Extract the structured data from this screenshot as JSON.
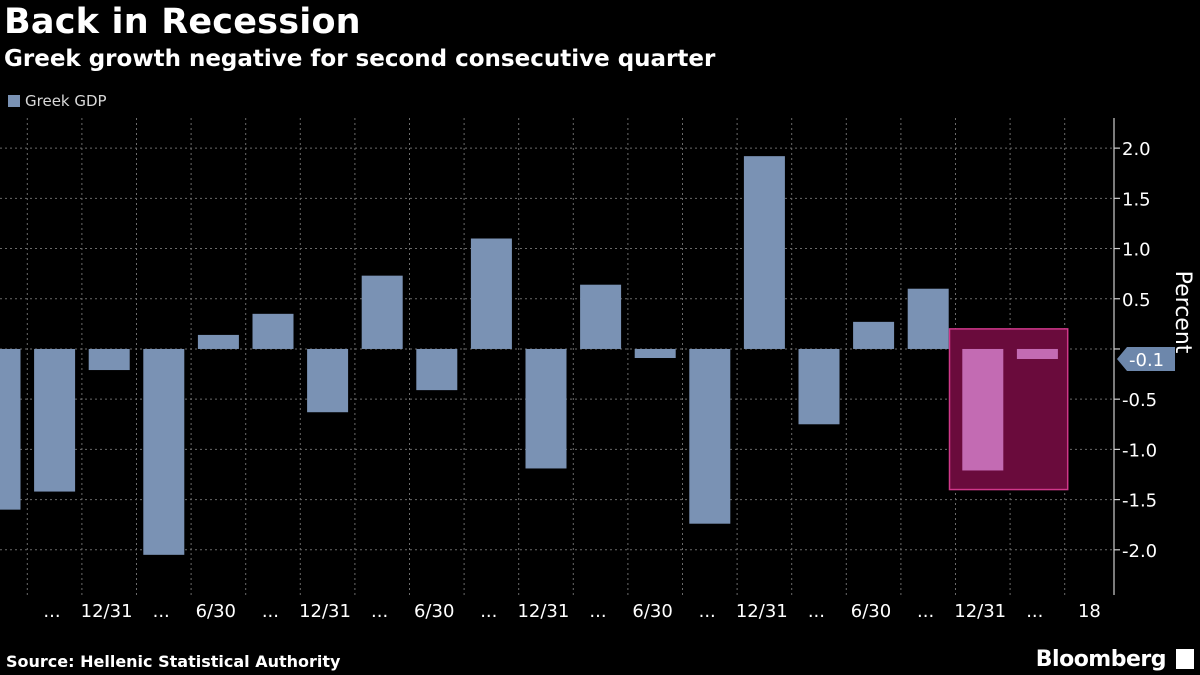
{
  "header": {
    "title": "Back in Recession",
    "subtitle": "Greek growth negative for second consecutive quarter"
  },
  "legend": {
    "label": "Greek GDP",
    "color": "#7a92b4"
  },
  "footer": {
    "source": "Source: Hellenic Statistical Authority",
    "brand": "Bloomberg"
  },
  "colors": {
    "bar": "#7a92b4",
    "highlight_bar": "#c36bb3",
    "highlight_fill": "#6a0b3c",
    "highlight_border": "#d0388a",
    "grid": "#6a6a6a",
    "callout": "#6d87ab"
  },
  "chart_data": {
    "type": "bar",
    "ylabel": "Percent",
    "ylim": [
      -2.45,
      2.3
    ],
    "yticks": [
      2.0,
      1.5,
      1.0,
      0.5,
      0.0,
      -0.5,
      -1.0,
      -1.5,
      -2.0
    ],
    "ytick_labels": [
      "2.0",
      "1.5",
      "1.0",
      "0.5",
      "0.0",
      "-0.5",
      "-1.0",
      "-1.5",
      "-2.0"
    ],
    "x_tick_labels": [
      "...",
      "12/31",
      "...",
      "6/30",
      "...",
      "12/31",
      "...",
      "6/30",
      "...",
      "12/31",
      "...",
      "6/30",
      "...",
      "12/31",
      "...",
      "6/30",
      "...",
      "12/31",
      "...",
      "18"
    ],
    "values": [
      -1.6,
      -1.42,
      -0.21,
      -2.05,
      0.14,
      0.35,
      -0.63,
      0.73,
      -0.41,
      1.1,
      -1.19,
      0.64,
      -0.09,
      -1.74,
      1.92,
      -0.75,
      0.27,
      0.6,
      -1.21,
      -0.1
    ],
    "highlight_indices": [
      18,
      19
    ],
    "highlight_range": [
      0.2,
      -1.4
    ],
    "last_value_label": "-0.1",
    "grid": true,
    "legend_position": "top-left"
  }
}
